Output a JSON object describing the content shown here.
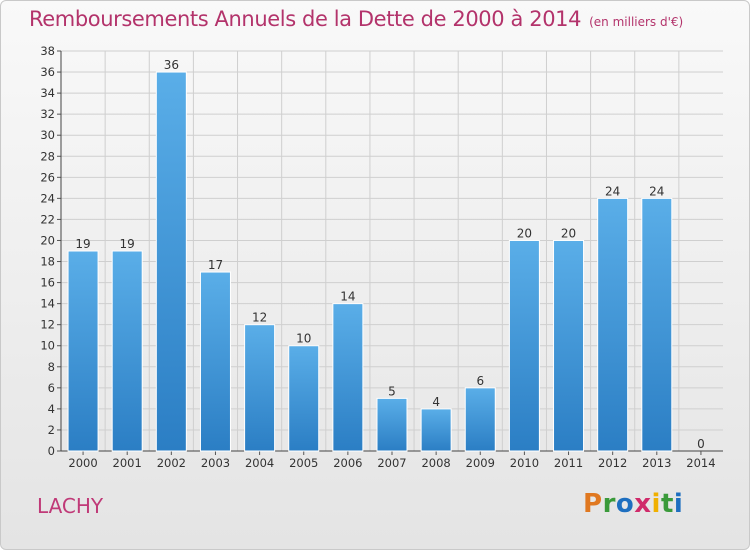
{
  "header": {
    "title": "Remboursements Annuels de la Dette de 2000 à 2014",
    "unit": "(en milliers d'€)"
  },
  "footer": {
    "city": "LACHY",
    "logo_text": "Proxiti",
    "logo_colors": [
      "#e07820",
      "#3a9a3a",
      "#1e6fc0",
      "#d02a6a",
      "#f0b000",
      "#3a9a3a",
      "#1e6fc0"
    ]
  },
  "chart_data": {
    "type": "bar",
    "title": "Remboursements Annuels de la Dette de 2000 à 2014",
    "subtitle": "(en milliers d'€)",
    "xlabel": "",
    "ylabel": "",
    "categories": [
      "2000",
      "2001",
      "2002",
      "2003",
      "2004",
      "2005",
      "2006",
      "2007",
      "2008",
      "2009",
      "2010",
      "2011",
      "2012",
      "2013",
      "2014"
    ],
    "values": [
      19,
      19,
      36,
      17,
      12,
      10,
      14,
      5,
      4,
      6,
      20,
      20,
      24,
      24,
      0
    ],
    "ylim": [
      0,
      38
    ],
    "ytick_step": 2,
    "grid": true,
    "legend": "none",
    "colors": {
      "bar_top": "#5aaee8",
      "bar_bottom": "#2b7ec4",
      "grid": "#cfcfcf",
      "text": "#333333"
    }
  }
}
